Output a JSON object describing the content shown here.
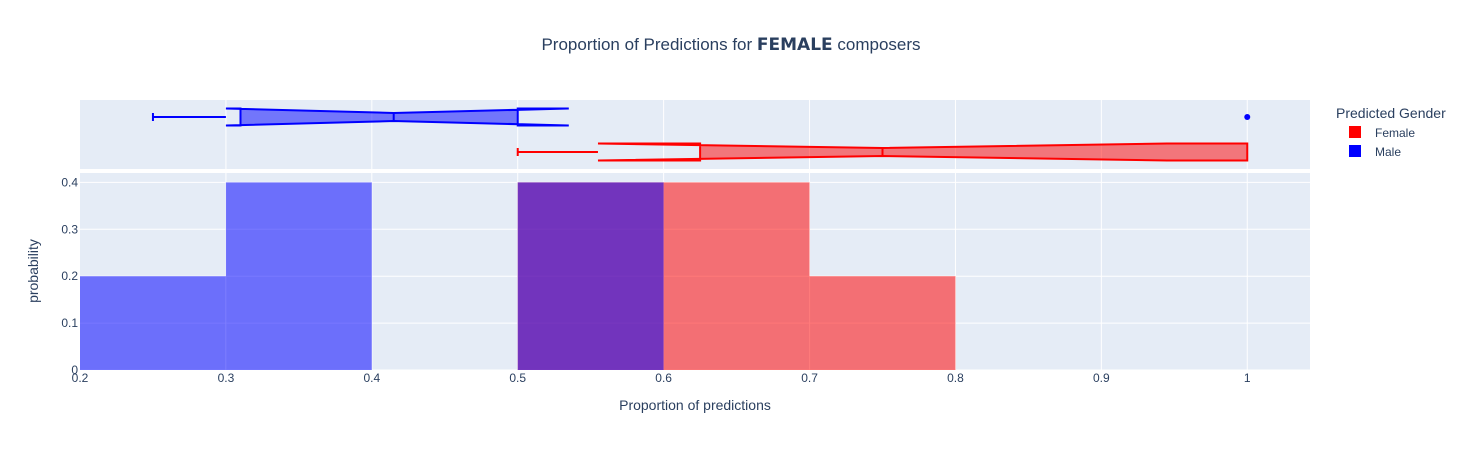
{
  "chart_data": {
    "type": "bar",
    "title": {
      "prefix": "Proportion of Predictions for ",
      "highlight": "FEMALE",
      "suffix": " composers"
    },
    "xlabel": "Proportion of predictions",
    "ylabel": "probability",
    "xlim": [
      0.2,
      1.043
    ],
    "ylim": [
      0,
      0.42
    ],
    "x_ticks": [
      {
        "value": 0.2,
        "label": "0.2"
      },
      {
        "value": 0.3,
        "label": "0.3"
      },
      {
        "value": 0.4,
        "label": "0.4"
      },
      {
        "value": 0.5,
        "label": "0.5"
      },
      {
        "value": 0.6,
        "label": "0.6"
      },
      {
        "value": 0.7,
        "label": "0.7"
      },
      {
        "value": 0.8,
        "label": "0.8"
      },
      {
        "value": 0.9,
        "label": "0.9"
      },
      {
        "value": 1.0,
        "label": "1"
      }
    ],
    "y_ticks": [
      {
        "value": 0,
        "label": "0"
      },
      {
        "value": 0.1,
        "label": "0.1"
      },
      {
        "value": 0.2,
        "label": "0.2"
      },
      {
        "value": 0.3,
        "label": "0.3"
      },
      {
        "value": 0.4,
        "label": "0.4"
      }
    ],
    "grid": true,
    "legend": {
      "title": "Predicted Gender",
      "placement": "top-right",
      "entries": [
        {
          "name": "Female",
          "color": "#ff0000"
        },
        {
          "name": "Male",
          "color": "#0000ff"
        }
      ]
    },
    "series": [
      {
        "name": "Male",
        "color": "#0000ff",
        "bins": [
          {
            "start": 0.2,
            "end": 0.3,
            "value": 0.2
          },
          {
            "start": 0.3,
            "end": 0.4,
            "value": 0.4
          },
          {
            "start": 0.5,
            "end": 0.6,
            "value": 0.4
          }
        ],
        "box": {
          "min": 0.25,
          "q1": 0.31,
          "median": 0.415,
          "q3": 0.5,
          "upper_fence": 0.5,
          "notch_low": 0.3,
          "notch_high": 0.535,
          "outliers": [
            1.0
          ]
        }
      },
      {
        "name": "Female",
        "color": "#ff0000",
        "bins": [
          {
            "start": 0.5,
            "end": 0.6,
            "value": 0.4
          },
          {
            "start": 0.6,
            "end": 0.7,
            "value": 0.4
          },
          {
            "start": 0.7,
            "end": 0.8,
            "value": 0.2
          }
        ],
        "box": {
          "min": 0.5,
          "q1": 0.625,
          "median": 0.75,
          "q3": 1.0,
          "upper_fence": 1.0,
          "notch_low": 0.555,
          "notch_high": 0.945,
          "outliers": []
        }
      }
    ]
  }
}
